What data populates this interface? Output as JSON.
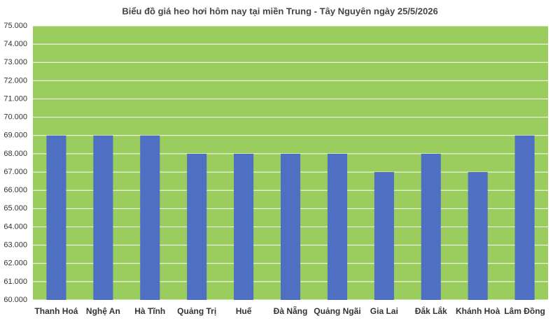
{
  "chart_data": {
    "type": "bar",
    "title": "Biểu đồ giá heo hơi hôm nay tại miền Trung - Tây Nguyên ngày 25/5/2026",
    "categories": [
      "Thanh Hoá",
      "Nghệ An",
      "Hà Tĩnh",
      "Quảng Trị",
      "Huế",
      "Đà Nẵng",
      "Quảng Ngãi",
      "Gia Lai",
      "Đắk Lắk",
      "Khánh Hoà",
      "Lâm Đồng"
    ],
    "values": [
      69000,
      69000,
      69000,
      68000,
      68000,
      68000,
      68000,
      67000,
      68000,
      67000,
      69000
    ],
    "color": "#4f6fc2",
    "plot_background": "#9acd5e",
    "ylim": [
      60000,
      75000
    ],
    "yticks": [
      {
        "value": 60000,
        "label": "60.000"
      },
      {
        "value": 61000,
        "label": "61.000"
      },
      {
        "value": 62000,
        "label": "62.000"
      },
      {
        "value": 63000,
        "label": "63.000"
      },
      {
        "value": 64000,
        "label": "64.000"
      },
      {
        "value": 65000,
        "label": "65.000"
      },
      {
        "value": 66000,
        "label": "66.000"
      },
      {
        "value": 67000,
        "label": "67.000"
      },
      {
        "value": 68000,
        "label": "68.000"
      },
      {
        "value": 69000,
        "label": "69.000"
      },
      {
        "value": 70000,
        "label": "70.000"
      },
      {
        "value": 71000,
        "label": "71.000"
      },
      {
        "value": 72000,
        "label": "72.000"
      },
      {
        "value": 73000,
        "label": "73.000"
      },
      {
        "value": 74000,
        "label": "74.000"
      },
      {
        "value": 75000,
        "label": "75.000"
      }
    ],
    "grid": true
  }
}
